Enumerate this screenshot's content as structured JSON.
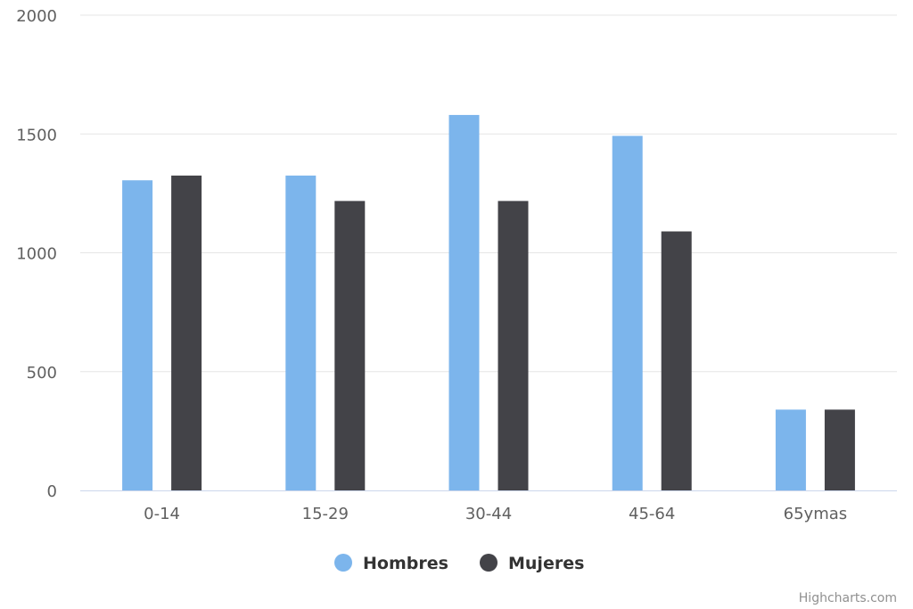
{
  "chart_data": {
    "type": "bar",
    "categories": [
      "0-14",
      "15-29",
      "30-44",
      "45-64",
      "65ymas"
    ],
    "series": [
      {
        "name": "Hombres",
        "color": "#7cb5ec",
        "values": [
          1305,
          1325,
          1580,
          1492,
          340
        ]
      },
      {
        "name": "Mujeres",
        "color": "#434348",
        "values": [
          1325,
          1218,
          1218,
          1090,
          340
        ]
      }
    ],
    "yticks": [
      0,
      500,
      1000,
      1500,
      2000
    ],
    "ylim": [
      0,
      2000
    ],
    "grid": true,
    "legend_position": "bottom-center"
  },
  "credits": "Highcharts.com"
}
